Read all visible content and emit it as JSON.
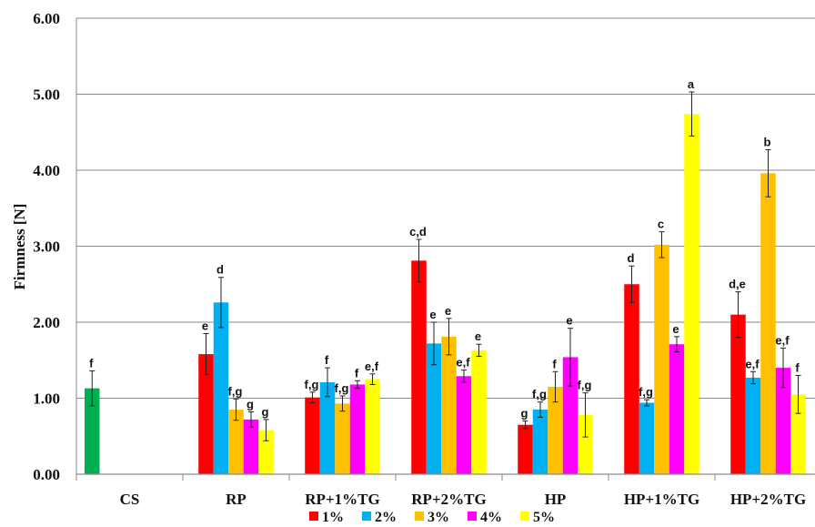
{
  "chart_data": {
    "type": "bar",
    "ylabel": "Firmness [N]",
    "ylim": [
      0,
      6
    ],
    "yticks": [
      "0.00",
      "1.00",
      "2.00",
      "3.00",
      "4.00",
      "5.00",
      "6.00"
    ],
    "grid": "horizontal",
    "legend_position": "bottom",
    "categories": [
      "CS",
      "RP",
      "RP+1%TG",
      "RP+2%TG",
      "HP",
      "HP+1%TG",
      "HP+2%TG"
    ],
    "series": [
      {
        "name": "1%",
        "color": "#ff0000",
        "values": [
          null,
          1.58,
          1.01,
          2.81,
          0.65,
          2.5,
          2.1
        ],
        "errors": [
          null,
          0.27,
          0.07,
          0.28,
          0.05,
          0.24,
          0.3
        ],
        "labels": [
          "",
          "e",
          "f,g",
          "c,d",
          "g",
          "d",
          "d,e"
        ]
      },
      {
        "name": "2%",
        "color": "#00b0f0",
        "values": [
          null,
          2.26,
          1.21,
          1.72,
          0.85,
          0.94,
          1.27
        ],
        "errors": [
          null,
          0.33,
          0.19,
          0.28,
          0.1,
          0.04,
          0.08
        ],
        "labels": [
          "",
          "d",
          "f",
          "e",
          "f,g",
          "f,g",
          "e,f"
        ]
      },
      {
        "name": "3%",
        "color": "#ffc000",
        "values": [
          null,
          0.85,
          0.93,
          1.81,
          1.15,
          3.02,
          3.96
        ],
        "errors": [
          null,
          0.14,
          0.1,
          0.24,
          0.2,
          0.17,
          0.31
        ],
        "labels": [
          "",
          "f,g",
          "f,g",
          "e",
          "f",
          "c",
          "b"
        ]
      },
      {
        "name": "4%",
        "color": "#ff00ff",
        "values": [
          null,
          0.72,
          1.18,
          1.29,
          1.54,
          1.71,
          1.4
        ],
        "errors": [
          null,
          0.1,
          0.05,
          0.08,
          0.38,
          0.1,
          0.26
        ],
        "labels": [
          "",
          "g",
          "f",
          "e,f",
          "e",
          "e",
          "e,f"
        ]
      },
      {
        "name": "5%",
        "color": "#ffff00",
        "values": [
          1.13,
          0.58,
          1.25,
          1.63,
          0.78,
          4.74,
          1.05
        ],
        "errors": [
          0.23,
          0.14,
          0.07,
          0.08,
          0.29,
          0.29,
          0.25
        ],
        "labels": [
          "f",
          "g",
          "e,f",
          "e",
          "f,g",
          "a",
          "f"
        ]
      }
    ],
    "cs_bar_color": "#00b050"
  }
}
